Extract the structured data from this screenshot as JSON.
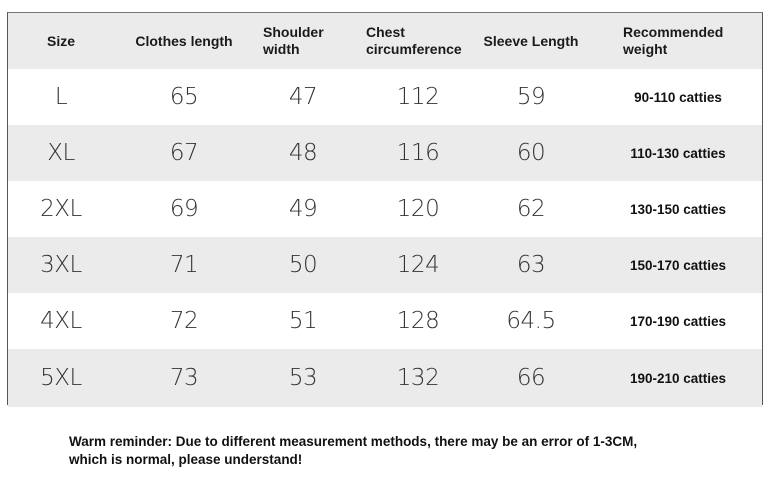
{
  "headers": [
    "Size",
    "Clothes length",
    "Shoulder width",
    "Chest circumference",
    "Sleeve Length",
    "Recommended weight"
  ],
  "rows": [
    [
      "L",
      "65",
      "47",
      "112",
      "59",
      "90-110 catties"
    ],
    [
      "XL",
      "67",
      "48",
      "116",
      "60",
      "110-130 catties"
    ],
    [
      "2XL",
      "69",
      "49",
      "120",
      "62",
      "130-150 catties"
    ],
    [
      "3XL",
      "71",
      "50",
      "124",
      "63",
      "150-170 catties"
    ],
    [
      "4XL",
      "72",
      "51",
      "128",
      "64.5",
      "170-190 catties"
    ],
    [
      "5XL",
      "73",
      "53",
      "132",
      "66",
      "190-210 catties"
    ]
  ],
  "note": {
    "line1": "Warm reminder: Due to different measurement methods, there may be an error of 1-3CM,",
    "line2": "which is normal, please understand!"
  },
  "colors": {
    "row_gray": "#ebebeb",
    "row_white": "#ffffff",
    "border": "#555555"
  }
}
